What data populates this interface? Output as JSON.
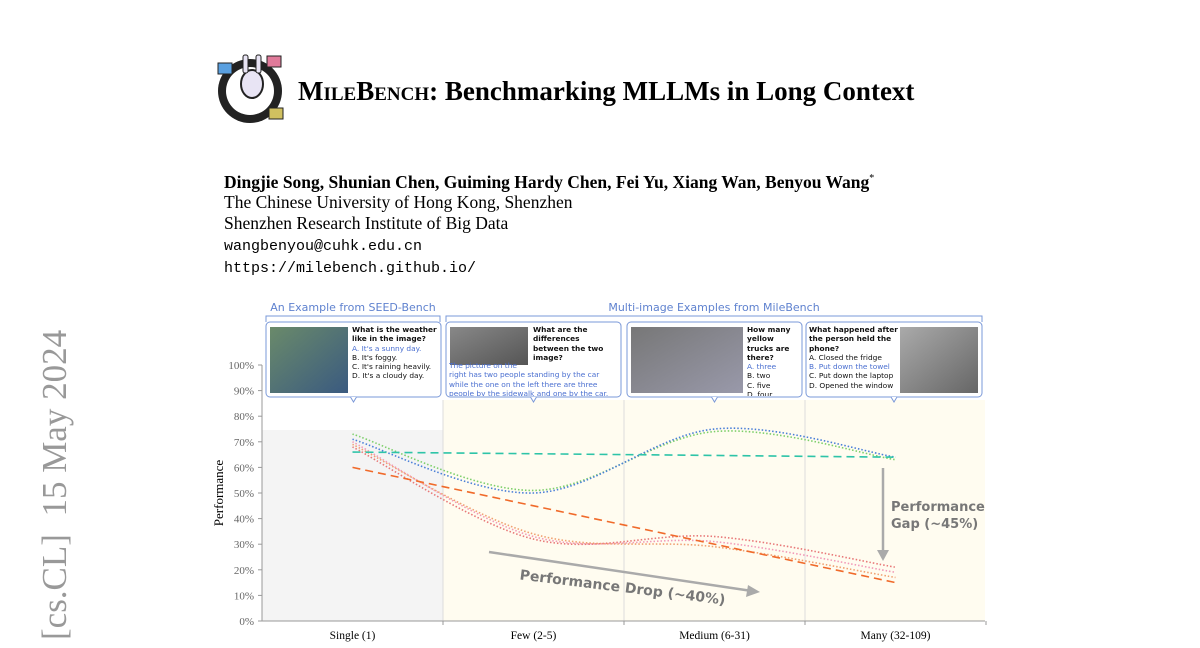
{
  "stamp": "[cs.CL]  15 May 2024",
  "title_name": "MileBench",
  "title_rest": ": Benchmarking MLLMs in Long Context",
  "authors": "Dingjie Song, Shunian Chen, Guiming Hardy Chen, Fei Yu, Xiang Wan, Benyou Wang",
  "author_mark": "*",
  "affiliations": [
    "The Chinese University of Hong Kong, Shenzhen",
    "Shenzhen Research Institute of Big Data"
  ],
  "email": "wangbenyou@cuhk.edu.cn",
  "url": "https://milebench.github.io/",
  "figure": {
    "group_labels": [
      "An Example from SEED-Bench",
      "Multi-image Examples from MileBench"
    ],
    "examples": [
      {
        "question": "What is the weather like in the image?",
        "options": [
          "A. It's a sunny day.",
          "B. It's foggy.",
          "C. It's raining heavily.",
          "D. It's a cloudy day."
        ],
        "answer": 0
      },
      {
        "question": "What are the differences between the two image?",
        "answer_text": "The picture on the right has two people standing by the car while the one on the left there are three people by the sidewalk and one by the car."
      },
      {
        "question": "How many yellow trucks are there?",
        "options": [
          "A. three",
          "B. two",
          "C. five",
          "D. four"
        ],
        "answer": 0
      },
      {
        "question": "What happened after the person held the phone?",
        "options": [
          "A. Closed the fridge",
          "B. Put down the towel",
          "C. Put down the laptop",
          "D. Opened the window"
        ],
        "answer": 1
      }
    ]
  },
  "chart_data": {
    "type": "line",
    "categories": [
      "Single (1)",
      "Few (2-5)",
      "Medium (6-31)",
      "Many (32-109)"
    ],
    "y_label": "Performance",
    "ylim": [
      0,
      100
    ],
    "yticks": [
      {
        "value": 0,
        "label": "0%"
      },
      {
        "value": 10,
        "label": "10%"
      },
      {
        "value": 20,
        "label": "20%"
      },
      {
        "value": 30,
        "label": "30%"
      },
      {
        "value": 40,
        "label": "40%"
      },
      {
        "value": 50,
        "label": "50%"
      },
      {
        "value": 60,
        "label": "60%"
      },
      {
        "value": 70,
        "label": "70%"
      },
      {
        "value": 80,
        "label": "80%"
      },
      {
        "value": 90,
        "label": "90%"
      },
      {
        "value": 100,
        "label": "100%"
      }
    ],
    "series": [
      {
        "color": "#7ccf6a",
        "values": [
          73,
          51,
          74,
          63
        ]
      },
      {
        "color": "#4a7fd8",
        "values": [
          71,
          50,
          75,
          64
        ]
      },
      {
        "color": "#f29ab8",
        "values": [
          70,
          33,
          31,
          19
        ]
      },
      {
        "color": "#e87878",
        "values": [
          68,
          32,
          33,
          21
        ]
      },
      {
        "color": "#f0a070",
        "values": [
          69,
          34,
          29,
          17
        ]
      }
    ],
    "trend_lines": [
      {
        "color": "#2ec4a8",
        "values": [
          66,
          64
        ]
      },
      {
        "color": "#f06a2a",
        "values": [
          60,
          15
        ]
      }
    ],
    "annotations": {
      "drop": "Performance Drop (~40%)",
      "gap": [
        "Performance",
        "Gap (~45%)"
      ]
    }
  }
}
